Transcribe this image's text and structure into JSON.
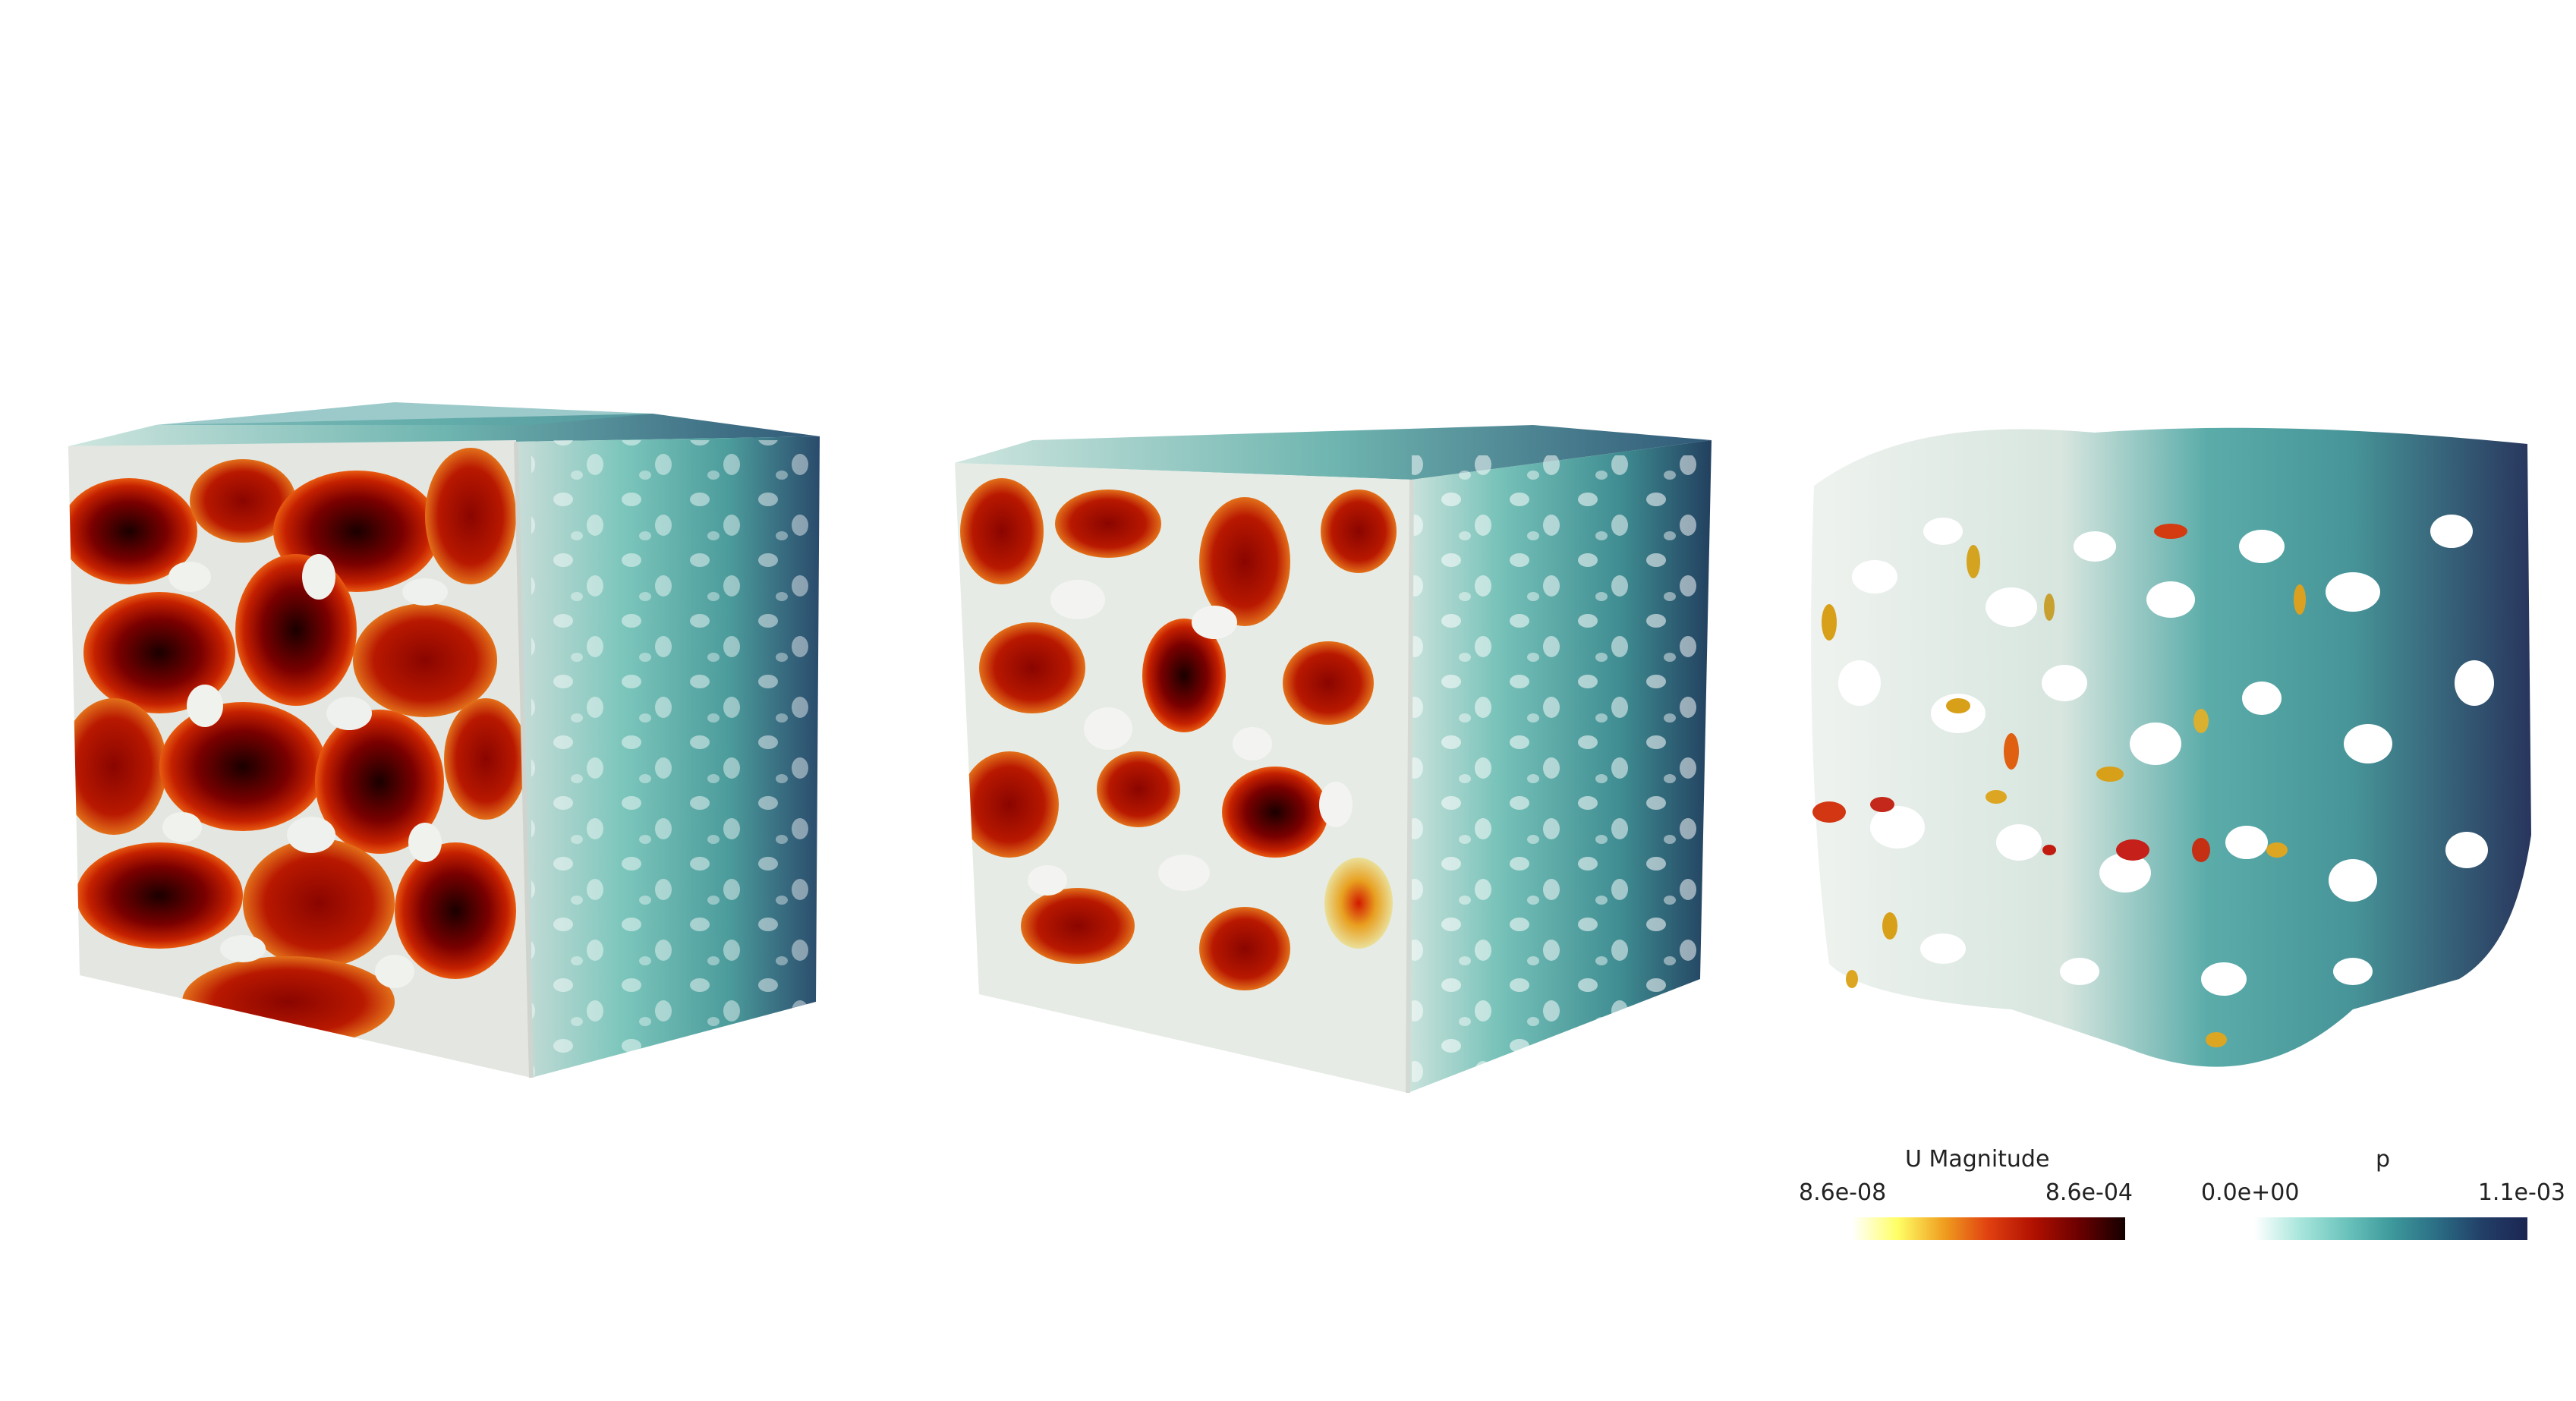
{
  "views": [
    {
      "name": "cube-full-mesh"
    },
    {
      "name": "cube-partial-mesh"
    },
    {
      "name": "pore-network-sparse"
    }
  ],
  "legends": {
    "velocity": {
      "title": "U Magnitude",
      "min": "8.6e-08",
      "max": "8.6e-04",
      "colors": [
        "#ffffff",
        "#ffff66",
        "#f0a020",
        "#e04010",
        "#b01000",
        "#6a0000",
        "#140000"
      ]
    },
    "pressure": {
      "title": "p",
      "min": "0.0e+00",
      "max": "1.1e-03",
      "colors": [
        "#ffffff",
        "#a8e6dc",
        "#6cc4bd",
        "#3e9a9c",
        "#2b6e85",
        "#223f68",
        "#1b2552"
      ]
    }
  },
  "palette": {
    "background": "#ffffff",
    "solid_light": "#e6ebe6",
    "solid_white": "#f2f2ef",
    "velocity_high": "#7a0000",
    "velocity_mid": "#c01a00",
    "pressure_low": "#6fc2b8",
    "pressure_mid": "#3d8f93",
    "pressure_high": "#21405e"
  }
}
